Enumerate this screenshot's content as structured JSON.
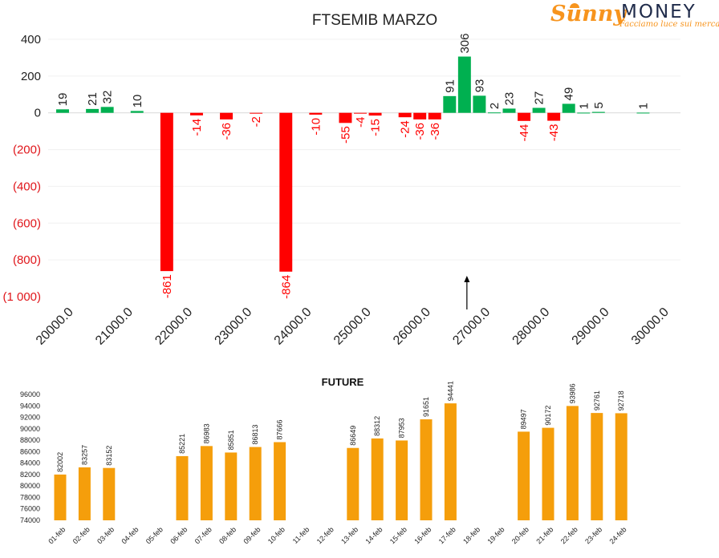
{
  "brand": {
    "name_script": "Sunny",
    "name_caps": "MONEY",
    "tagline": "Facciamo luce sui mercati"
  },
  "colors": {
    "negative": "#ff0000",
    "positive": "#00b050",
    "future_bar": "#f59e0b",
    "text": "#222222",
    "negative_tick": "#e0161b"
  },
  "chart_data": [
    {
      "type": "bar",
      "title": "FTSEMIB MARZO",
      "x": [
        20000,
        20250,
        20500,
        20750,
        21000,
        21250,
        21500,
        21750,
        22000,
        22250,
        22500,
        22750,
        23000,
        23250,
        23500,
        23750,
        24000,
        24250,
        24500,
        24750,
        25000,
        25250,
        25500,
        25750,
        26000,
        26250,
        26500,
        26750,
        27000,
        27250,
        27500,
        27750,
        28000,
        28250,
        28500,
        28750,
        29000,
        29250,
        29500,
        29750,
        30000
      ],
      "bars": [
        {
          "x": 20000,
          "value": 19,
          "label": "19"
        },
        {
          "x": 20500,
          "value": 21,
          "label": "21"
        },
        {
          "x": 20750,
          "value": 32,
          "label": "32"
        },
        {
          "x": 21250,
          "value": 10,
          "label": "10"
        },
        {
          "x": 21750,
          "value": -861,
          "label": "-861"
        },
        {
          "x": 22250,
          "value": -14,
          "label": "-14"
        },
        {
          "x": 22750,
          "value": -36,
          "label": "-36"
        },
        {
          "x": 23250,
          "value": -2,
          "label": "-2"
        },
        {
          "x": 23750,
          "value": -864,
          "label": "-864"
        },
        {
          "x": 24250,
          "value": -10,
          "label": "-10"
        },
        {
          "x": 24750,
          "value": -55,
          "label": "-55"
        },
        {
          "x": 25000,
          "value": -4,
          "label": "-4"
        },
        {
          "x": 25250,
          "value": -15,
          "label": "-15"
        },
        {
          "x": 25750,
          "value": -24,
          "label": "-24"
        },
        {
          "x": 26000,
          "value": -36,
          "label": "-36"
        },
        {
          "x": 26250,
          "value": -36,
          "label": "-36"
        },
        {
          "x": 26500,
          "value": 91,
          "label": "91"
        },
        {
          "x": 26750,
          "value": 306,
          "label": "306"
        },
        {
          "x": 27000,
          "value": 93,
          "label": "93"
        },
        {
          "x": 27250,
          "value": 2,
          "label": "2"
        },
        {
          "x": 27500,
          "value": 23,
          "label": "23"
        },
        {
          "x": 27750,
          "value": -44,
          "label": "-44"
        },
        {
          "x": 28000,
          "value": 27,
          "label": "27"
        },
        {
          "x": 28250,
          "value": -43,
          "label": "-43"
        },
        {
          "x": 28500,
          "value": 49,
          "label": "49"
        },
        {
          "x": 28750,
          "value": 1,
          "label": "1"
        },
        {
          "x": 29000,
          "value": 5,
          "label": "5"
        },
        {
          "x": 29750,
          "value": 1,
          "label": "1"
        }
      ],
      "xticks": [
        "20000.0",
        "21000.0",
        "22000.0",
        "23000.0",
        "24000.0",
        "25000.0",
        "26000.0",
        "27000.0",
        "28000.0",
        "29000.0",
        "30000.0"
      ],
      "yticks": [
        {
          "value": 400,
          "label": "400"
        },
        {
          "value": 200,
          "label": "200"
        },
        {
          "value": 0,
          "label": "0"
        },
        {
          "value": -200,
          "label": "(200)"
        },
        {
          "value": -400,
          "label": "(400)"
        },
        {
          "value": -600,
          "label": "(600)"
        },
        {
          "value": -800,
          "label": "(800)"
        },
        {
          "value": -1000,
          "label": "(1 000)"
        }
      ],
      "ylim": [
        -1000,
        400
      ],
      "marker": {
        "x": 26750,
        "shape": "up-arrow"
      },
      "grid": true
    },
    {
      "type": "bar",
      "title": "FUTURE",
      "categories": [
        "01-feb",
        "02-feb",
        "03-feb",
        "04-feb",
        "05-feb",
        "06-feb",
        "07-feb",
        "08-feb",
        "09-feb",
        "10-feb",
        "11-feb",
        "12-feb",
        "13-feb",
        "14-feb",
        "15-feb",
        "16-feb",
        "17-feb",
        "18-feb",
        "19-feb",
        "20-feb",
        "21-feb",
        "22-feb",
        "23-feb",
        "24-feb"
      ],
      "values": [
        82002,
        83257,
        83152,
        null,
        null,
        85221,
        86983,
        85851,
        86813,
        87666,
        null,
        null,
        86649,
        88312,
        87953,
        91651,
        94441,
        null,
        null,
        89497,
        90172,
        93986,
        92761,
        92718
      ],
      "yticks": [
        "96000",
        "94000",
        "92000",
        "90000",
        "88000",
        "86000",
        "84000",
        "82000",
        "80000",
        "78000",
        "76000",
        "74000"
      ],
      "ylim": [
        74000,
        96000
      ],
      "grid": false
    }
  ]
}
